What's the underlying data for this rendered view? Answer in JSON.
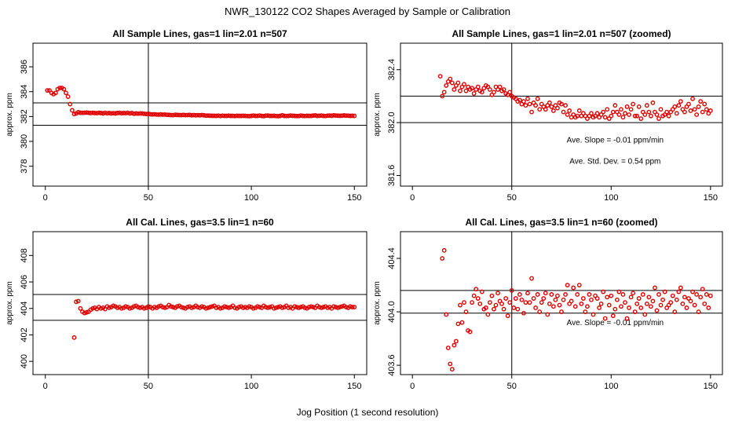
{
  "figure": {
    "title": "NWR_130122  CO2 Shapes Averaged by Sample or Calibration",
    "xlabel": "Jog Position (1 second resolution)"
  },
  "colors": {
    "points": "#e00000",
    "axes": "#000000"
  },
  "chart_data": [
    {
      "type": "scatter",
      "title": "All Sample Lines, gas=1 lin=2.01 n=507",
      "xlabel": "",
      "ylabel": "approx. ppm",
      "xlim": [
        -6,
        156
      ],
      "ylim": [
        376.4,
        387.9
      ],
      "xticks": [
        0,
        50,
        100,
        150
      ],
      "xtick_labels": [
        "0",
        "50",
        "100",
        "150"
      ],
      "yticks": [
        378,
        380,
        382,
        384,
        386
      ],
      "ytick_labels": [
        "378",
        "380",
        "382",
        "384",
        "386"
      ],
      "hlines": [
        383.1,
        381.3
      ],
      "vlines": [
        50
      ],
      "annotations": [],
      "grid": false,
      "x": [
        1,
        2,
        3,
        4,
        5,
        6,
        7,
        8,
        9,
        10,
        11,
        12,
        13,
        14,
        15,
        16,
        17,
        18,
        19,
        20,
        21,
        22,
        23,
        24,
        25,
        26,
        27,
        28,
        29,
        30,
        31,
        32,
        33,
        34,
        35,
        36,
        37,
        38,
        39,
        40,
        41,
        42,
        43,
        44,
        45,
        46,
        47,
        48,
        49,
        50,
        51,
        52,
        53,
        54,
        55,
        56,
        57,
        58,
        59,
        60,
        61,
        62,
        63,
        64,
        65,
        66,
        67,
        68,
        69,
        70,
        71,
        72,
        73,
        74,
        75,
        76,
        77,
        78,
        79,
        80,
        81,
        82,
        83,
        84,
        85,
        86,
        87,
        88,
        89,
        90,
        91,
        92,
        93,
        94,
        95,
        96,
        97,
        98,
        99,
        100,
        101,
        102,
        103,
        104,
        105,
        106,
        107,
        108,
        109,
        110,
        111,
        112,
        113,
        114,
        115,
        116,
        117,
        118,
        119,
        120,
        121,
        122,
        123,
        124,
        125,
        126,
        127,
        128,
        129,
        130,
        131,
        132,
        133,
        134,
        135,
        136,
        137,
        138,
        139,
        140,
        141,
        142,
        143,
        144,
        145,
        146,
        147,
        148,
        149,
        150
      ],
      "y": [
        384.1,
        384.1,
        383.9,
        383.8,
        383.9,
        384.2,
        384.3,
        384.3,
        384.2,
        383.9,
        383.6,
        383.0,
        382.5,
        382.2,
        382.25,
        382.35,
        382.3,
        382.3,
        382.3,
        382.32,
        382.3,
        382.28,
        382.3,
        382.28,
        382.27,
        382.3,
        382.28,
        382.25,
        382.3,
        382.26,
        382.28,
        382.25,
        382.27,
        382.25,
        382.28,
        382.3,
        382.26,
        382.28,
        382.27,
        382.3,
        382.25,
        382.28,
        382.22,
        382.25,
        382.23,
        382.25,
        382.24,
        382.22,
        382.2,
        382.22,
        382.18,
        382.17,
        382.18,
        382.16,
        382.15,
        382.17,
        382.15,
        382.16,
        382.14,
        382.13,
        382.12,
        382.11,
        382.14,
        382.13,
        382.12,
        382.11,
        382.13,
        382.11,
        382.12,
        382.13,
        382.1,
        382.12,
        382.1,
        382.11,
        382.1,
        382.12,
        382.1,
        382.07,
        382.08,
        382.07,
        382.06,
        382.06,
        382.05,
        382.07,
        382.04,
        382.07,
        382.05,
        382.05,
        382.07,
        382.05,
        382.05,
        382.04,
        382.06,
        382.05,
        382.05,
        382.06,
        382.05,
        382.04,
        382.03,
        382.05,
        382.08,
        382.05,
        382.05,
        382.08,
        382.05,
        382.03,
        382.07,
        382.08,
        382.05,
        382.05,
        382.06,
        382.04,
        382.03,
        382.05,
        382.1,
        382.05,
        382.04,
        382.05,
        382.08,
        382.06,
        382.05,
        382.04,
        382.04,
        382.08,
        382.05,
        382.04,
        382.06,
        382.05,
        382.05,
        382.08,
        382.09,
        382.05,
        382.06,
        382.08,
        382.05,
        382.04,
        382.07,
        382.08,
        382.06,
        382.1,
        382.08,
        382.07,
        382.06,
        382.07,
        382.09,
        382.07,
        382.07,
        382.05,
        382.06,
        382.05
      ]
    },
    {
      "type": "scatter",
      "title": "All Sample Lines, gas=1 lin=2.01 n=507 (zoomed)",
      "xlabel": "",
      "ylabel": "approx. ppm",
      "xlim": [
        -6,
        156
      ],
      "ylim": [
        381.52,
        382.6
      ],
      "xticks": [
        0,
        50,
        100,
        150
      ],
      "xtick_labels": [
        "0",
        "50",
        "100",
        "150"
      ],
      "yticks": [
        381.6,
        382.0,
        382.4
      ],
      "ytick_labels": [
        "381.6",
        "382.0",
        "382.4"
      ],
      "hlines": [
        382.2,
        382.0
      ],
      "vlines": [
        50
      ],
      "annotations": [
        {
          "text": "Ave. Slope =  -0.01  ppm/min",
          "x": 102,
          "y": 381.85
        },
        {
          "text": "Ave. Std. Dev. =  0.54  ppm",
          "x": 102,
          "y": 381.69
        }
      ],
      "grid": false,
      "x": [
        14,
        15,
        16,
        17,
        18,
        19,
        20,
        21,
        22,
        23,
        24,
        25,
        26,
        27,
        28,
        29,
        30,
        31,
        32,
        33,
        34,
        35,
        36,
        37,
        38,
        39,
        40,
        41,
        42,
        43,
        44,
        45,
        46,
        47,
        48,
        49,
        50,
        51,
        52,
        53,
        54,
        55,
        56,
        57,
        58,
        59,
        60,
        61,
        62,
        63,
        64,
        65,
        66,
        67,
        68,
        69,
        70,
        71,
        72,
        73,
        74,
        75,
        76,
        77,
        78,
        79,
        80,
        81,
        82,
        83,
        84,
        85,
        86,
        87,
        88,
        89,
        90,
        91,
        92,
        93,
        94,
        95,
        96,
        97,
        98,
        99,
        100,
        101,
        102,
        103,
        104,
        105,
        106,
        107,
        108,
        109,
        110,
        111,
        112,
        113,
        114,
        115,
        116,
        117,
        118,
        119,
        120,
        121,
        122,
        123,
        124,
        125,
        126,
        127,
        128,
        129,
        130,
        131,
        132,
        133,
        134,
        135,
        136,
        137,
        138,
        139,
        140,
        141,
        142,
        143,
        144,
        145,
        146,
        147,
        148,
        149,
        150
      ],
      "y": [
        382.35,
        382.2,
        382.23,
        382.28,
        382.31,
        382.33,
        382.3,
        382.25,
        382.28,
        382.3,
        382.24,
        382.27,
        382.29,
        382.24,
        382.27,
        382.25,
        382.26,
        382.22,
        382.25,
        382.27,
        382.24,
        382.23,
        382.26,
        382.28,
        382.27,
        382.25,
        382.21,
        382.23,
        382.27,
        382.25,
        382.27,
        382.24,
        382.25,
        382.22,
        382.21,
        382.23,
        382.2,
        382.19,
        382.18,
        382.16,
        382.17,
        382.14,
        382.16,
        382.13,
        382.18,
        382.14,
        382.08,
        382.15,
        382.13,
        382.18,
        382.1,
        382.14,
        382.12,
        382.1,
        382.13,
        382.15,
        382.12,
        382.09,
        382.13,
        382.11,
        382.15,
        382.14,
        382.08,
        382.13,
        382.06,
        382.09,
        382.04,
        382.06,
        382.04,
        382.05,
        382.09,
        382.05,
        382.07,
        382.05,
        382.03,
        382.05,
        382.07,
        382.04,
        382.05,
        382.07,
        382.04,
        382.06,
        382.08,
        382.04,
        382.1,
        382.03,
        382.05,
        382.08,
        382.13,
        382.08,
        382.06,
        382.1,
        382.04,
        382.07,
        382.12,
        382.06,
        382.1,
        382.14,
        382.05,
        382.05,
        382.12,
        382.03,
        382.08,
        382.06,
        382.13,
        382.08,
        382.05,
        382.15,
        382.08,
        382.06,
        382.03,
        382.1,
        382.05,
        382.06,
        382.08,
        382.05,
        382.08,
        382.1,
        382.12,
        382.07,
        382.13,
        382.16,
        382.1,
        382.08,
        382.12,
        382.14,
        382.09,
        382.18,
        382.1,
        382.06,
        382.12,
        382.16,
        382.08,
        382.14,
        382.1,
        382.07,
        382.09
      ]
    },
    {
      "type": "scatter",
      "title": "All Cal. Lines, gas=3.5 lin=1 n=60",
      "xlabel": "",
      "ylabel": "approx. ppm",
      "xlim": [
        -6,
        156
      ],
      "ylim": [
        399.0,
        409.8
      ],
      "xticks": [
        0,
        50,
        100,
        150
      ],
      "xtick_labels": [
        "0",
        "50",
        "100",
        "150"
      ],
      "yticks": [
        400,
        402,
        404,
        406,
        408
      ],
      "ytick_labels": [
        "400",
        "402",
        "404",
        "406",
        "408"
      ],
      "hlines": [
        405.05,
        403.1
      ],
      "vlines": [
        50
      ],
      "annotations": [],
      "grid": false,
      "x": [
        14,
        15,
        16,
        17,
        18,
        19,
        20,
        21,
        22,
        23,
        24,
        25,
        26,
        27,
        28,
        29,
        30,
        31,
        32,
        33,
        34,
        35,
        36,
        37,
        38,
        39,
        40,
        41,
        42,
        43,
        44,
        45,
        46,
        47,
        48,
        49,
        50,
        51,
        52,
        53,
        54,
        55,
        56,
        57,
        58,
        59,
        60,
        61,
        62,
        63,
        64,
        65,
        66,
        67,
        68,
        69,
        70,
        71,
        72,
        73,
        74,
        75,
        76,
        77,
        78,
        79,
        80,
        81,
        82,
        83,
        84,
        85,
        86,
        87,
        88,
        89,
        90,
        91,
        92,
        93,
        94,
        95,
        96,
        97,
        98,
        99,
        100,
        101,
        102,
        103,
        104,
        105,
        106,
        107,
        108,
        109,
        110,
        111,
        112,
        113,
        114,
        115,
        116,
        117,
        118,
        119,
        120,
        121,
        122,
        123,
        124,
        125,
        126,
        127,
        128,
        129,
        130,
        131,
        132,
        133,
        134,
        135,
        136,
        137,
        138,
        139,
        140,
        141,
        142,
        143,
        144,
        145,
        146,
        147,
        148,
        149,
        150
      ],
      "y": [
        401.8,
        404.5,
        404.55,
        404.0,
        403.75,
        403.65,
        403.7,
        403.75,
        403.9,
        404.0,
        404.05,
        403.95,
        404.1,
        404.0,
        404.05,
        403.95,
        404.15,
        404.05,
        404.1,
        404.2,
        404.15,
        404.05,
        404.1,
        404.0,
        404.05,
        404.15,
        404.1,
        404.0,
        404.05,
        404.15,
        404.2,
        404.1,
        404.05,
        404.1,
        404.0,
        404.05,
        404.15,
        404.1,
        404.0,
        404.1,
        404.05,
        404.15,
        404.2,
        404.1,
        404.05,
        404.1,
        404.25,
        404.15,
        404.1,
        404.05,
        404.15,
        404.2,
        404.1,
        404.05,
        404.0,
        404.1,
        404.15,
        404.05,
        404.1,
        404.2,
        404.1,
        404.05,
        404.15,
        404.1,
        404.0,
        404.05,
        404.1,
        404.15,
        404.2,
        404.05,
        404.1,
        404.0,
        404.05,
        404.15,
        404.1,
        404.05,
        404.1,
        404.2,
        404.05,
        404.0,
        404.1,
        404.15,
        404.05,
        404.1,
        404.05,
        404.15,
        404.1,
        404.0,
        404.05,
        404.15,
        404.1,
        404.05,
        404.2,
        404.1,
        404.05,
        404.1,
        404.15,
        404.0,
        404.05,
        404.1,
        404.15,
        404.05,
        404.1,
        404.2,
        404.05,
        404.1,
        404.0,
        404.15,
        404.1,
        404.05,
        404.1,
        404.15,
        404.05,
        404.0,
        404.1,
        404.15,
        404.1,
        404.05,
        404.2,
        404.1,
        404.05,
        404.1,
        404.15,
        404.05,
        404.1,
        404.0,
        404.15,
        404.1,
        404.05,
        404.1,
        404.15,
        404.2,
        404.1,
        404.05,
        404.15,
        404.1,
        404.1
      ]
    },
    {
      "type": "scatter",
      "title": "All Cal. Lines, gas=3.5 lin=1 n=60 (zoomed)",
      "xlabel": "",
      "ylabel": "approx. ppm",
      "xlim": [
        -6,
        156
      ],
      "ylim": [
        403.53,
        404.6
      ],
      "xticks": [
        0,
        50,
        100,
        150
      ],
      "xtick_labels": [
        "0",
        "50",
        "100",
        "150"
      ],
      "yticks": [
        403.6,
        404.0,
        404.4
      ],
      "ytick_labels": [
        "403.6",
        "404.0",
        "404.4"
      ],
      "hlines": [
        404.16,
        403.99
      ],
      "vlines": [
        50
      ],
      "annotations": [
        {
          "text": "Ave. Slope =  -0.01  ppm/min",
          "x": 102,
          "y": 403.9
        }
      ],
      "grid": false,
      "x": [
        15,
        16,
        17,
        18,
        19,
        20,
        21,
        22,
        23,
        24,
        25,
        26,
        27,
        28,
        29,
        30,
        31,
        32,
        33,
        34,
        35,
        36,
        37,
        38,
        39,
        40,
        41,
        42,
        43,
        44,
        45,
        46,
        47,
        48,
        49,
        50,
        51,
        52,
        53,
        54,
        55,
        56,
        57,
        58,
        59,
        60,
        61,
        62,
        63,
        64,
        65,
        66,
        67,
        68,
        69,
        70,
        71,
        72,
        73,
        74,
        75,
        76,
        77,
        78,
        79,
        80,
        81,
        82,
        83,
        84,
        85,
        86,
        87,
        88,
        89,
        90,
        91,
        92,
        93,
        94,
        95,
        96,
        97,
        98,
        99,
        100,
        101,
        102,
        103,
        104,
        105,
        106,
        107,
        108,
        109,
        110,
        111,
        112,
        113,
        114,
        115,
        116,
        117,
        118,
        119,
        120,
        121,
        122,
        123,
        124,
        125,
        126,
        127,
        128,
        129,
        130,
        131,
        132,
        133,
        134,
        135,
        136,
        137,
        138,
        139,
        140,
        141,
        142,
        143,
        144,
        145,
        146,
        147,
        148,
        149,
        150
      ],
      "y": [
        404.4,
        404.46,
        403.98,
        403.73,
        403.61,
        403.57,
        403.75,
        403.78,
        403.91,
        404.05,
        403.92,
        404.07,
        404.0,
        403.86,
        403.85,
        404.07,
        404.12,
        404.17,
        404.1,
        404.06,
        404.15,
        404.02,
        404.03,
        403.98,
        404.07,
        404.12,
        404.02,
        404.05,
        404.14,
        404.08,
        404.06,
        404.02,
        404.1,
        403.97,
        404.07,
        404.16,
        404.03,
        404.1,
        404.02,
        404.13,
        404.09,
        403.99,
        404.07,
        404.14,
        404.07,
        404.25,
        404.1,
        404.03,
        404.13,
        404.0,
        404.07,
        404.1,
        404.14,
        403.98,
        404.06,
        404.13,
        404.04,
        404.09,
        404.12,
        404.05,
        404.0,
        404.09,
        404.13,
        404.2,
        404.06,
        404.08,
        404.18,
        404.04,
        404.13,
        404.2,
        404.06,
        404.1,
        404.0,
        404.04,
        404.13,
        404.09,
        403.98,
        404.12,
        404.1,
        404.03,
        404.06,
        404.15,
        403.95,
        404.11,
        404.05,
        404.12,
        403.97,
        404.02,
        404.09,
        404.15,
        404.04,
        404.13,
        404.07,
        403.95,
        404.03,
        404.11,
        404.14,
        404.0,
        404.06,
        404.1,
        404.03,
        404.13,
        403.98,
        404.06,
        404.11,
        404.04,
        404.08,
        404.18,
        404.01,
        404.13,
        404.05,
        404.09,
        404.15,
        404.03,
        404.05,
        404.07,
        404.12,
        404.0,
        404.09,
        404.15,
        404.18,
        404.06,
        404.11,
        404.03,
        404.1,
        404.08,
        404.15,
        404.05,
        404.13,
        404.0,
        404.11,
        404.17,
        404.06,
        404.13,
        404.03,
        404.12
      ]
    }
  ]
}
